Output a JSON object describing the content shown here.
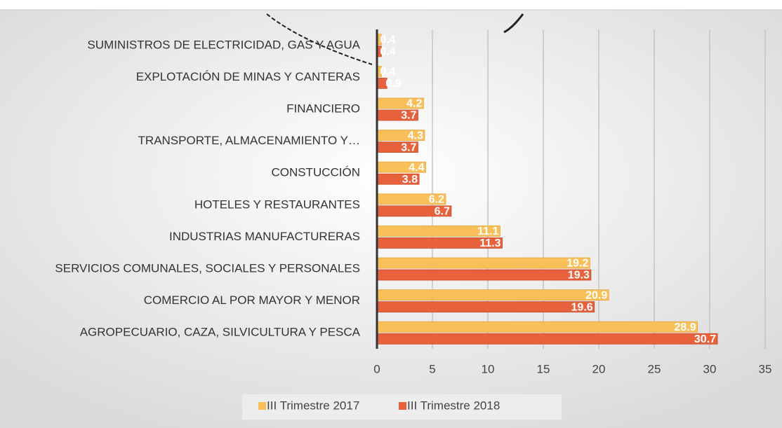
{
  "chart_data": {
    "type": "bar",
    "orientation": "horizontal",
    "categories": [
      "AGROPECUARIO, CAZA, SILVICULTURA Y PESCA",
      "COMERCIO AL POR MAYOR Y MENOR",
      "SERVICIOS COMUNALES, SOCIALES Y PERSONALES",
      "INDUSTRIAS MANUFACTURERAS",
      "HOTELES Y RESTAURANTES",
      "CONSTUCCIÓN",
      "TRANSPORTE, ALMACENAMIENTO Y…",
      "FINANCIERO",
      "EXPLOTACIÓN DE MINAS Y CANTERAS",
      "SUMINISTROS DE ELECTRICIDAD, GAS Y AGUA"
    ],
    "series": [
      {
        "name": "III Trimestre 2017",
        "color": "#f9bf58",
        "values": [
          28.9,
          20.9,
          19.2,
          11.1,
          6.2,
          4.4,
          4.3,
          4.2,
          0.4,
          0.4
        ]
      },
      {
        "name": "III Trimestre 2018",
        "color": "#e8613d",
        "values": [
          30.7,
          19.6,
          19.3,
          11.3,
          6.7,
          3.8,
          3.7,
          3.7,
          0.9,
          0.4
        ]
      }
    ],
    "xlim": [
      0,
      35
    ],
    "xticks": [
      0,
      5,
      10,
      15,
      20,
      25,
      30,
      35
    ],
    "grid": true,
    "legend": "bottom"
  }
}
